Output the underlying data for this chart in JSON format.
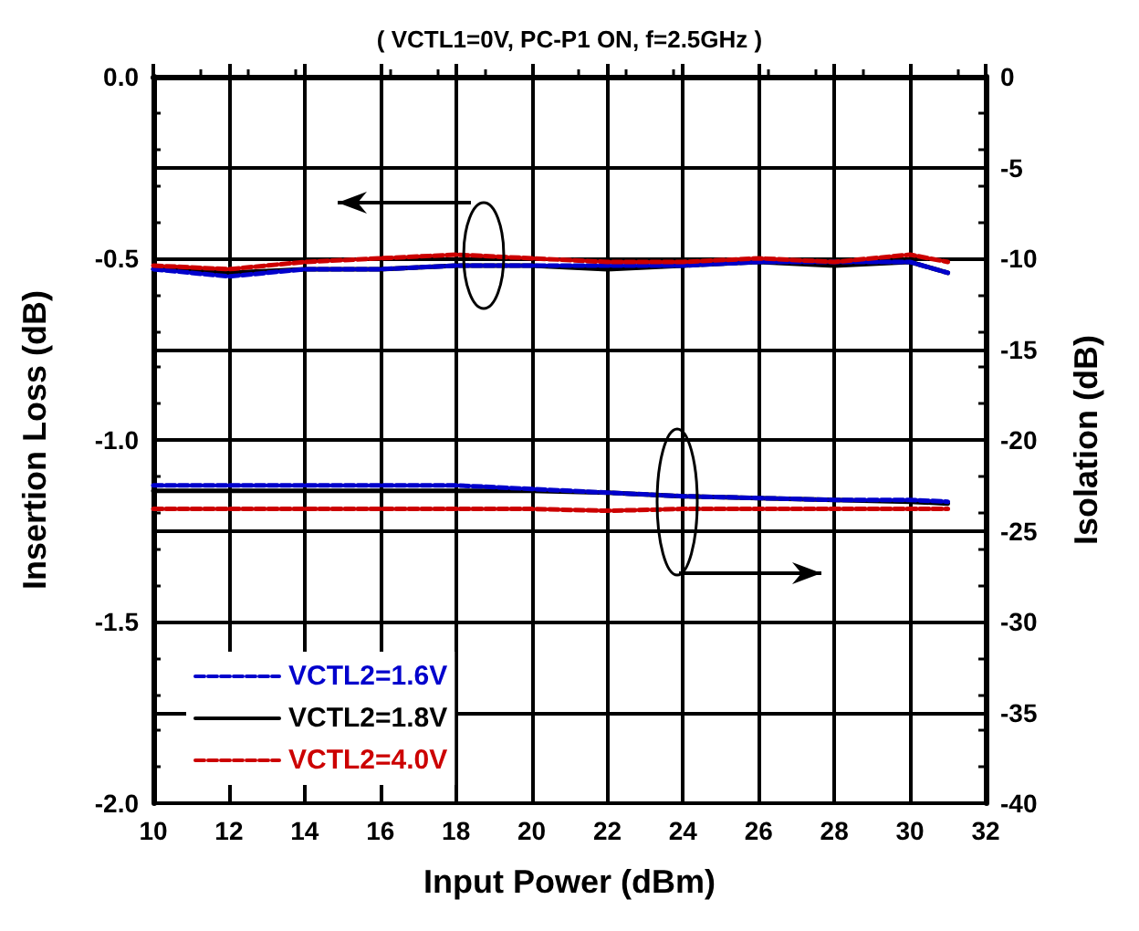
{
  "chart_data": {
    "type": "line",
    "title": "( VCTL1=0V, PC-P1 ON, f=2.5GHz )",
    "xlabel": "Input Power (dBm)",
    "ylabel": "Insertion Loss (dB)",
    "y2label": "Isolation (dB)",
    "x": [
      10,
      12,
      14,
      16,
      18,
      20,
      22,
      24,
      26,
      28,
      30,
      31
    ],
    "series": [
      {
        "name": "VCTL2=1.6V",
        "color": "#0000cc",
        "line_style": "dashed",
        "values": [
          -0.53,
          -0.55,
          -0.53,
          -0.53,
          -0.52,
          -0.52,
          -0.52,
          -0.52,
          -0.51,
          -0.51,
          -0.51,
          -0.54
        ]
      },
      {
        "name": "VCTL2=1.8V",
        "color": "#000000",
        "line_style": "solid",
        "values": [
          -0.53,
          -0.54,
          -0.53,
          -0.53,
          -0.52,
          -0.52,
          -0.53,
          -0.52,
          -0.51,
          -0.52,
          -0.51,
          -0.54
        ]
      },
      {
        "name": "VCTL2=4.0V",
        "color": "#cc0000",
        "line_style": "dashed",
        "values": [
          -0.52,
          -0.53,
          -0.51,
          -0.5,
          -0.49,
          -0.5,
          -0.51,
          -0.51,
          -0.5,
          -0.51,
          -0.49,
          -0.51
        ]
      },
      {
        "color": "#0000cc",
        "line_style": "dashed",
        "axis": "y2",
        "values": [
          -22.5,
          -22.5,
          -22.5,
          -22.5,
          -22.5,
          -22.7,
          -22.9,
          -23.1,
          -23.2,
          -23.3,
          -23.3,
          -23.4
        ]
      },
      {
        "color": "#000000",
        "line_style": "solid",
        "axis": "y2",
        "values": [
          -22.8,
          -22.8,
          -22.8,
          -22.8,
          -22.8,
          -22.8,
          -22.9,
          -23.1,
          -23.2,
          -23.3,
          -23.4,
          -23.5
        ]
      },
      {
        "color": "#cc0000",
        "line_style": "dashed",
        "axis": "y2",
        "values": [
          -23.8,
          -23.8,
          -23.8,
          -23.8,
          -23.8,
          -23.8,
          -23.9,
          -23.8,
          -23.8,
          -23.8,
          -23.8,
          -23.8
        ]
      }
    ],
    "xlim": [
      10,
      32
    ],
    "xticks": [
      10,
      12,
      14,
      16,
      18,
      20,
      22,
      24,
      26,
      28,
      30,
      32
    ],
    "ylim": [
      -2,
      0
    ],
    "yticks": [
      {
        "value": -2,
        "label": "-2.0"
      },
      {
        "value": -1.75,
        "label": null
      },
      {
        "value": -1.5,
        "label": "-1.5"
      },
      {
        "value": -1.25,
        "label": null
      },
      {
        "value": -1,
        "label": "-1.0"
      },
      {
        "value": -0.75,
        "label": null
      },
      {
        "value": -0.5,
        "label": "-0.5"
      },
      {
        "value": -0.25,
        "label": null
      },
      {
        "value": 0,
        "label": "0.0"
      }
    ],
    "y2lim": [
      -40,
      0
    ],
    "y2ticks": [
      -40,
      -35,
      -30,
      -25,
      -20,
      -15,
      -10,
      -5,
      0
    ],
    "grid": true,
    "legend": "bottom left",
    "marker": "none"
  }
}
